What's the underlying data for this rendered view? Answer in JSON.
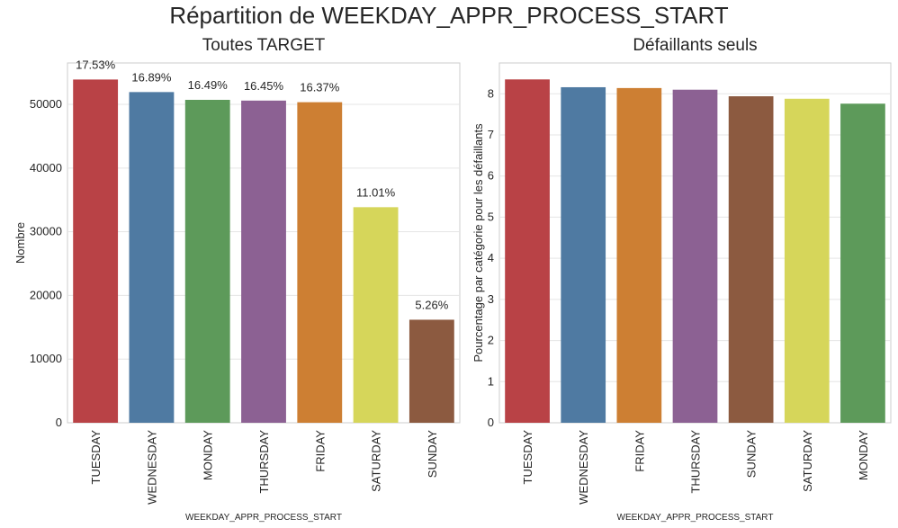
{
  "suptitle": "Répartition de WEEKDAY_APPR_PROCESS_START",
  "chart_data": [
    {
      "type": "bar",
      "title": "Toutes TARGET",
      "xlabel": "WEEKDAY_APPR_PROCESS_START",
      "ylabel": "Nombre",
      "ylim": [
        0,
        56500
      ],
      "yticks": [
        0,
        10000,
        20000,
        30000,
        40000,
        50000
      ],
      "grid": true,
      "categories": [
        "TUESDAY",
        "WEDNESDAY",
        "MONDAY",
        "THURSDAY",
        "FRIDAY",
        "SATURDAY",
        "SUNDAY"
      ],
      "values": [
        53900,
        51930,
        50710,
        50590,
        50340,
        33850,
        16180
      ],
      "data_labels": [
        "17.53%",
        "16.89%",
        "16.49%",
        "16.45%",
        "16.37%",
        "11.01%",
        "5.26%"
      ],
      "colors": [
        "#b94246",
        "#4f7aa2",
        "#5d9a5a",
        "#8c6193",
        "#cd7f33",
        "#d6d65a",
        "#8c5a40"
      ]
    },
    {
      "type": "bar",
      "title": "Défaillants seuls",
      "xlabel": "WEEKDAY_APPR_PROCESS_START",
      "ylabel": "Pourcentage par catégorie pour les défaillants",
      "ylim": [
        0,
        8.75
      ],
      "yticks": [
        0,
        1,
        2,
        3,
        4,
        5,
        6,
        7,
        8
      ],
      "grid": true,
      "categories": [
        "TUESDAY",
        "WEDNESDAY",
        "FRIDAY",
        "THURSDAY",
        "SUNDAY",
        "SATURDAY",
        "MONDAY"
      ],
      "values": [
        8.35,
        8.16,
        8.14,
        8.1,
        7.94,
        7.88,
        7.76
      ],
      "colors": [
        "#b94246",
        "#4f7aa2",
        "#cd7f33",
        "#8c6193",
        "#8c5a40",
        "#d6d65a",
        "#5d9a5a"
      ]
    }
  ]
}
